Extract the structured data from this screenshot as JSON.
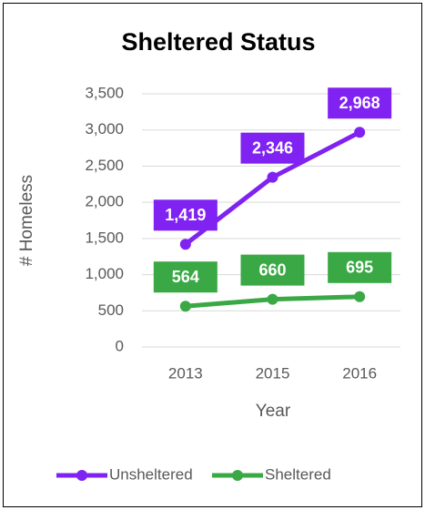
{
  "chart_data": {
    "type": "line",
    "title": "Sheltered Status",
    "x_label": "Year",
    "y_label": "# Homeless",
    "categories": [
      "2013",
      "2015",
      "2016"
    ],
    "series": [
      {
        "name": "Unsheltered",
        "color": "#7f22f2",
        "values": [
          1419,
          2346,
          2968
        ],
        "value_labels": [
          "1,419",
          "2,346",
          "2,968"
        ]
      },
      {
        "name": "Sheltered",
        "color": "#3aa845",
        "values": [
          564,
          660,
          695
        ],
        "value_labels": [
          "564",
          "660",
          "695"
        ]
      }
    ],
    "ylim": [
      0,
      3500
    ],
    "yticks": [
      0,
      500,
      {
        "value": 1000,
        "label": "1,000"
      },
      {
        "value": 1500,
        "label": "1,500"
      },
      {
        "value": 2000,
        "label": "2,000"
      },
      {
        "value": 2500,
        "label": "2,500"
      },
      {
        "value": 3000,
        "label": "3,000"
      },
      {
        "value": 3500,
        "label": "3,500"
      }
    ],
    "grid": true,
    "legend": "bottom"
  }
}
